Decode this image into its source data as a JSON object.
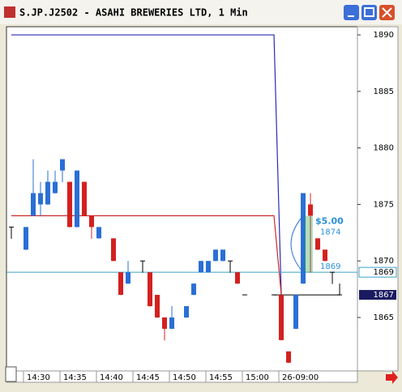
{
  "window": {
    "title": "S.JP.J2502 - ASAHI BREWERIES LTD, 1 Min"
  },
  "chart_data": {
    "type": "candlestick",
    "x": [
      0,
      2,
      3,
      4,
      5,
      6,
      7,
      8,
      9,
      10,
      11,
      12,
      14,
      15,
      16,
      18,
      19,
      20,
      21,
      22,
      24,
      25,
      26,
      27,
      28,
      29,
      30,
      31,
      32,
      36,
      37,
      38,
      39,
      40,
      41,
      42,
      43,
      44,
      45
    ],
    "open": [
      1873,
      1871,
      1874,
      1875,
      1875,
      1876,
      1878,
      1877,
      1873,
      1877,
      1874,
      1872,
      1872,
      1869,
      1868,
      1870,
      1869,
      1867,
      1865,
      1864,
      1865,
      1867,
      1869,
      1869,
      1870,
      1870,
      1870,
      1869,
      1867,
      1867,
      1867,
      1862,
      1864,
      1868,
      1875,
      1872,
      1871,
      1869,
      1867
    ],
    "high": [
      1873,
      1873,
      1879,
      1877,
      1878,
      1878,
      1879,
      1877,
      1878,
      1877,
      1874,
      1873,
      1872,
      1869,
      1870,
      1870,
      1869,
      1867,
      1865,
      1866,
      1866,
      1868,
      1870,
      1870,
      1871,
      1871,
      1870,
      1869,
      1867,
      1867,
      1867,
      1862,
      1867,
      1876,
      1876,
      1872,
      1871,
      1869,
      1868
    ],
    "low": [
      1872,
      1871,
      1874,
      1874,
      1875,
      1876,
      1877,
      1873,
      1873,
      1874,
      1872,
      1872,
      1870,
      1867,
      1868,
      1869,
      1866,
      1865,
      1863,
      1864,
      1865,
      1867,
      1869,
      1869,
      1870,
      1870,
      1869,
      1868,
      1867,
      1867,
      1863,
      1861,
      1864,
      1868,
      1869,
      1871,
      1870,
      1868,
      1867
    ],
    "close": [
      1873,
      1873,
      1876,
      1876,
      1877,
      1877,
      1879,
      1873,
      1878,
      1874,
      1873,
      1873,
      1870,
      1867,
      1869,
      1870,
      1866,
      1865,
      1864,
      1865,
      1866,
      1868,
      1870,
      1870,
      1871,
      1871,
      1870,
      1868,
      1867,
      1867,
      1863,
      1861,
      1867,
      1876,
      1874,
      1871,
      1870,
      1869,
      1867
    ],
    "up_color": "#2a6fd6",
    "down_color": "#d42020",
    "lines": [
      {
        "color": "#2a2ab8",
        "x": [
          0,
          36,
          37
        ],
        "values": [
          1890,
          1890,
          1867
        ]
      },
      {
        "color": "#d02828",
        "x": [
          0,
          36,
          37
        ],
        "values": [
          1874,
          1874,
          1867
        ]
      }
    ],
    "price_line": {
      "value": 1869,
      "color": "#3aa0c8"
    },
    "order_line": {
      "value": 1867,
      "x": [
        36,
        45
      ],
      "color": "#1a1a60"
    },
    "measure": {
      "label": "$5.00",
      "from": 1874,
      "to": 1869,
      "x": 40
    },
    "xlim": [
      -0.667,
      47.44
    ],
    "ylim": [
      1860.27,
      1890.72
    ],
    "yticks": [
      1865,
      1870,
      1875,
      1880,
      1885,
      1890
    ],
    "xticks": [
      {
        "value": 2,
        "label": "14:30"
      },
      {
        "value": 7,
        "label": "14:35"
      },
      {
        "value": 12,
        "label": "14:40"
      },
      {
        "value": 17,
        "label": "14:45"
      },
      {
        "value": 22,
        "label": "14:50"
      },
      {
        "value": 27,
        "label": "14:55"
      },
      {
        "value": 32,
        "label": "15:00"
      },
      {
        "value": 37,
        "label": "26-09:00"
      }
    ]
  }
}
